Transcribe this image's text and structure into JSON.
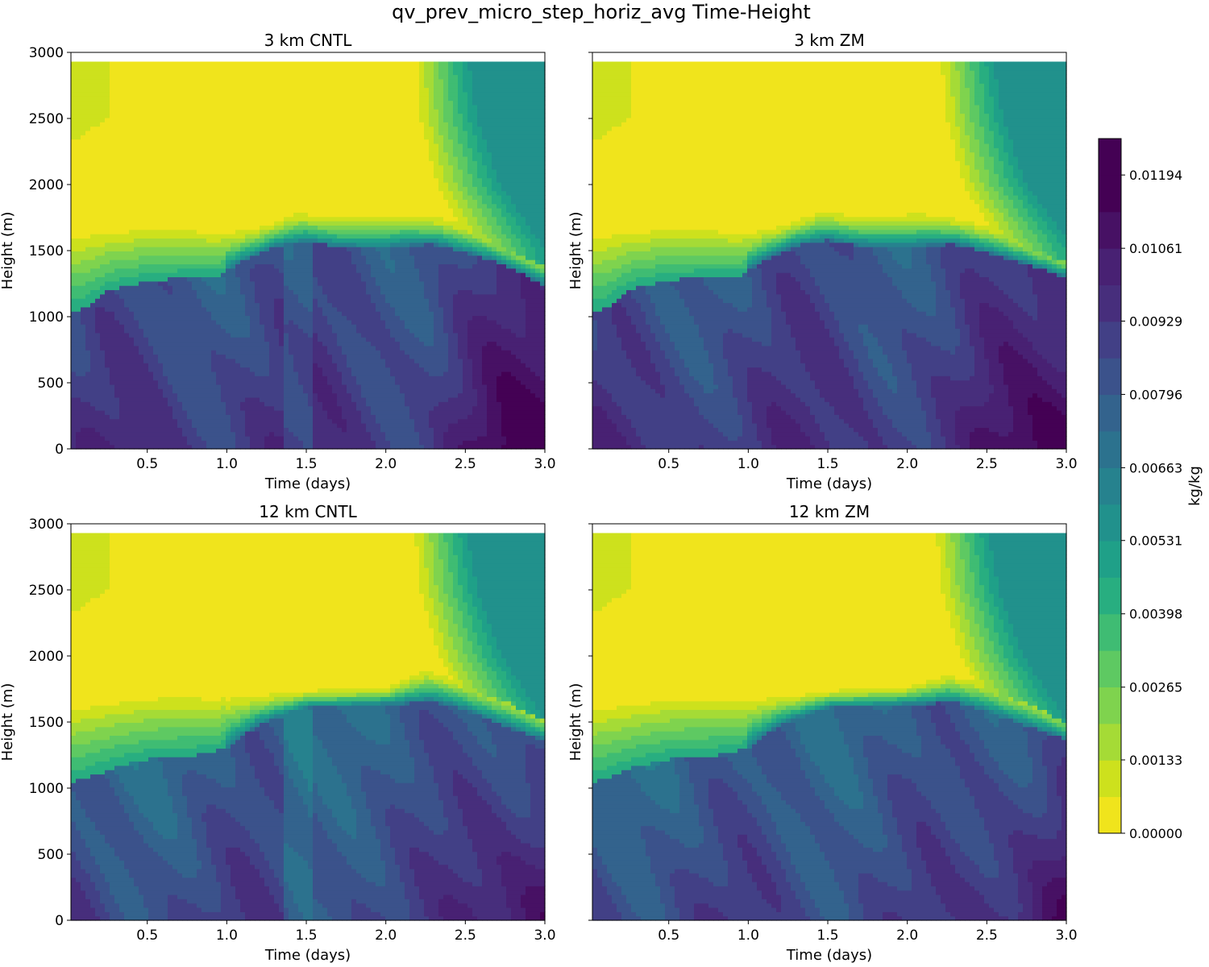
{
  "figure": {
    "suptitle": "qv_prev_micro_step_horiz_avg Time-Height"
  },
  "chart_data": {
    "type": "contourf",
    "xlabel": "Time (days)",
    "ylabel": "Height (m)",
    "xlim": [
      0.02,
      3.0
    ],
    "ylim": [
      0,
      3000
    ],
    "data_top_m": 2930,
    "xticks": [
      0.5,
      1.0,
      1.5,
      2.0,
      2.5,
      3.0
    ],
    "xtick_labels": [
      "0.5",
      "1.0",
      "1.5",
      "2.0",
      "2.5",
      "3.0"
    ],
    "yticks": [
      0,
      500,
      1000,
      1500,
      2000,
      2500,
      3000
    ],
    "ytick_labels": [
      "0",
      "500",
      "1000",
      "1500",
      "2000",
      "2500",
      "3000"
    ],
    "panels": [
      {
        "title": "3 km CNTL",
        "show_ytick_labels": true,
        "inversion_height_m": [
          [
            0.02,
            1050
          ],
          [
            0.1,
            1060
          ],
          [
            0.25,
            1200
          ],
          [
            0.5,
            1270
          ],
          [
            0.75,
            1300
          ],
          [
            0.95,
            1310
          ],
          [
            1.1,
            1420
          ],
          [
            1.3,
            1530
          ],
          [
            1.5,
            1570
          ],
          [
            1.7,
            1530
          ],
          [
            2.0,
            1510
          ],
          [
            2.1,
            1540
          ],
          [
            2.3,
            1550
          ],
          [
            2.5,
            1490
          ],
          [
            2.75,
            1390
          ],
          [
            3.0,
            1240
          ]
        ],
        "moist_layer_top_m": [
          [
            0.02,
            1600
          ],
          [
            0.3,
            1640
          ],
          [
            0.6,
            1680
          ],
          [
            0.95,
            1630
          ],
          [
            1.2,
            1680
          ],
          [
            1.45,
            1790
          ],
          [
            1.7,
            1760
          ],
          [
            2.1,
            1780
          ],
          [
            2.35,
            1750
          ],
          [
            2.6,
            1660
          ],
          [
            3.0,
            1450
          ]
        ],
        "free_trop_edge_days": [
          [
            0,
            2.5
          ],
          [
            1500,
            2.5
          ],
          [
            2000,
            2.27
          ],
          [
            2500,
            2.17
          ],
          [
            2930,
            2.15
          ]
        ],
        "boundary_layer_max_kgkg": 0.012
      },
      {
        "title": "3 km ZM",
        "show_ytick_labels": false,
        "inversion_height_m": [
          [
            0.02,
            1050
          ],
          [
            0.1,
            1060
          ],
          [
            0.25,
            1210
          ],
          [
            0.5,
            1280
          ],
          [
            0.75,
            1300
          ],
          [
            0.95,
            1310
          ],
          [
            1.1,
            1430
          ],
          [
            1.3,
            1540
          ],
          [
            1.5,
            1580
          ],
          [
            1.7,
            1540
          ],
          [
            2.0,
            1520
          ],
          [
            2.1,
            1540
          ],
          [
            2.3,
            1550
          ],
          [
            2.5,
            1490
          ],
          [
            2.75,
            1400
          ],
          [
            3.0,
            1300
          ]
        ],
        "moist_layer_top_m": [
          [
            0.02,
            1600
          ],
          [
            0.3,
            1640
          ],
          [
            0.6,
            1680
          ],
          [
            0.95,
            1630
          ],
          [
            1.2,
            1690
          ],
          [
            1.45,
            1800
          ],
          [
            1.7,
            1770
          ],
          [
            2.1,
            1790
          ],
          [
            2.35,
            1740
          ],
          [
            2.6,
            1660
          ],
          [
            3.0,
            1470
          ]
        ],
        "free_trop_edge_days": [
          [
            0,
            2.55
          ],
          [
            1500,
            2.55
          ],
          [
            2000,
            2.3
          ],
          [
            2500,
            2.2
          ],
          [
            2930,
            2.17
          ]
        ],
        "boundary_layer_max_kgkg": 0.0121
      },
      {
        "title": "12 km CNTL",
        "show_ytick_labels": true,
        "inversion_height_m": [
          [
            0.02,
            1050
          ],
          [
            0.1,
            1070
          ],
          [
            0.3,
            1160
          ],
          [
            0.5,
            1220
          ],
          [
            0.8,
            1250
          ],
          [
            1.0,
            1300
          ],
          [
            1.2,
            1480
          ],
          [
            1.5,
            1610
          ],
          [
            1.8,
            1620
          ],
          [
            2.1,
            1640
          ],
          [
            2.3,
            1660
          ],
          [
            2.5,
            1590
          ],
          [
            2.75,
            1470
          ],
          [
            3.0,
            1360
          ]
        ],
        "moist_layer_top_m": [
          [
            0.02,
            1600
          ],
          [
            0.3,
            1650
          ],
          [
            0.6,
            1690
          ],
          [
            0.95,
            1680
          ],
          [
            1.3,
            1720
          ],
          [
            1.6,
            1750
          ],
          [
            2.0,
            1760
          ],
          [
            2.25,
            1900
          ],
          [
            2.5,
            1810
          ],
          [
            2.75,
            1720
          ],
          [
            3.0,
            1570
          ]
        ],
        "free_trop_edge_days": [
          [
            0,
            2.5
          ],
          [
            1500,
            2.5
          ],
          [
            2000,
            2.28
          ],
          [
            2500,
            2.17
          ],
          [
            2930,
            2.14
          ]
        ],
        "boundary_layer_max_kgkg": 0.0114
      },
      {
        "title": "12 km ZM",
        "show_ytick_labels": false,
        "inversion_height_m": [
          [
            0.02,
            1050
          ],
          [
            0.1,
            1070
          ],
          [
            0.3,
            1170
          ],
          [
            0.5,
            1220
          ],
          [
            0.8,
            1250
          ],
          [
            1.0,
            1300
          ],
          [
            1.2,
            1480
          ],
          [
            1.5,
            1610
          ],
          [
            1.8,
            1620
          ],
          [
            2.1,
            1640
          ],
          [
            2.3,
            1650
          ],
          [
            2.5,
            1580
          ],
          [
            2.75,
            1470
          ],
          [
            3.0,
            1370
          ]
        ],
        "moist_layer_top_m": [
          [
            0.02,
            1600
          ],
          [
            0.3,
            1640
          ],
          [
            0.6,
            1680
          ],
          [
            0.95,
            1670
          ],
          [
            1.3,
            1710
          ],
          [
            1.6,
            1750
          ],
          [
            2.0,
            1770
          ],
          [
            2.25,
            1860
          ],
          [
            2.5,
            1800
          ],
          [
            2.75,
            1710
          ],
          [
            3.0,
            1560
          ]
        ],
        "free_trop_edge_days": [
          [
            0,
            2.5
          ],
          [
            1500,
            2.5
          ],
          [
            2000,
            2.28
          ],
          [
            2500,
            2.17
          ],
          [
            2930,
            2.14
          ]
        ],
        "boundary_layer_max_kgkg": 0.0114
      }
    ],
    "colorbar": {
      "label": "kg/kg",
      "vmin": 0.0,
      "vmax": 0.0126,
      "n_levels": 19,
      "level_step": 0.000663,
      "tick_values": [
        0.0,
        0.00133,
        0.00265,
        0.00398,
        0.00531,
        0.00663,
        0.00796,
        0.00929,
        0.01061,
        0.01194
      ],
      "tick_labels": [
        "0.00000",
        "0.00133",
        "0.00265",
        "0.00398",
        "0.00531",
        "0.00663",
        "0.00796",
        "0.00929",
        "0.01061",
        "0.01194"
      ],
      "colors": [
        "#f0e41c",
        "#cde11d",
        "#a5db36",
        "#7fd34e",
        "#5ec962",
        "#3fbc73",
        "#28ae80",
        "#1fa088",
        "#21918c",
        "#26828e",
        "#2c728e",
        "#33638d",
        "#3b528b",
        "#424086",
        "#472e7c",
        "#482173",
        "#471164",
        "#440154",
        "#440154"
      ]
    }
  }
}
